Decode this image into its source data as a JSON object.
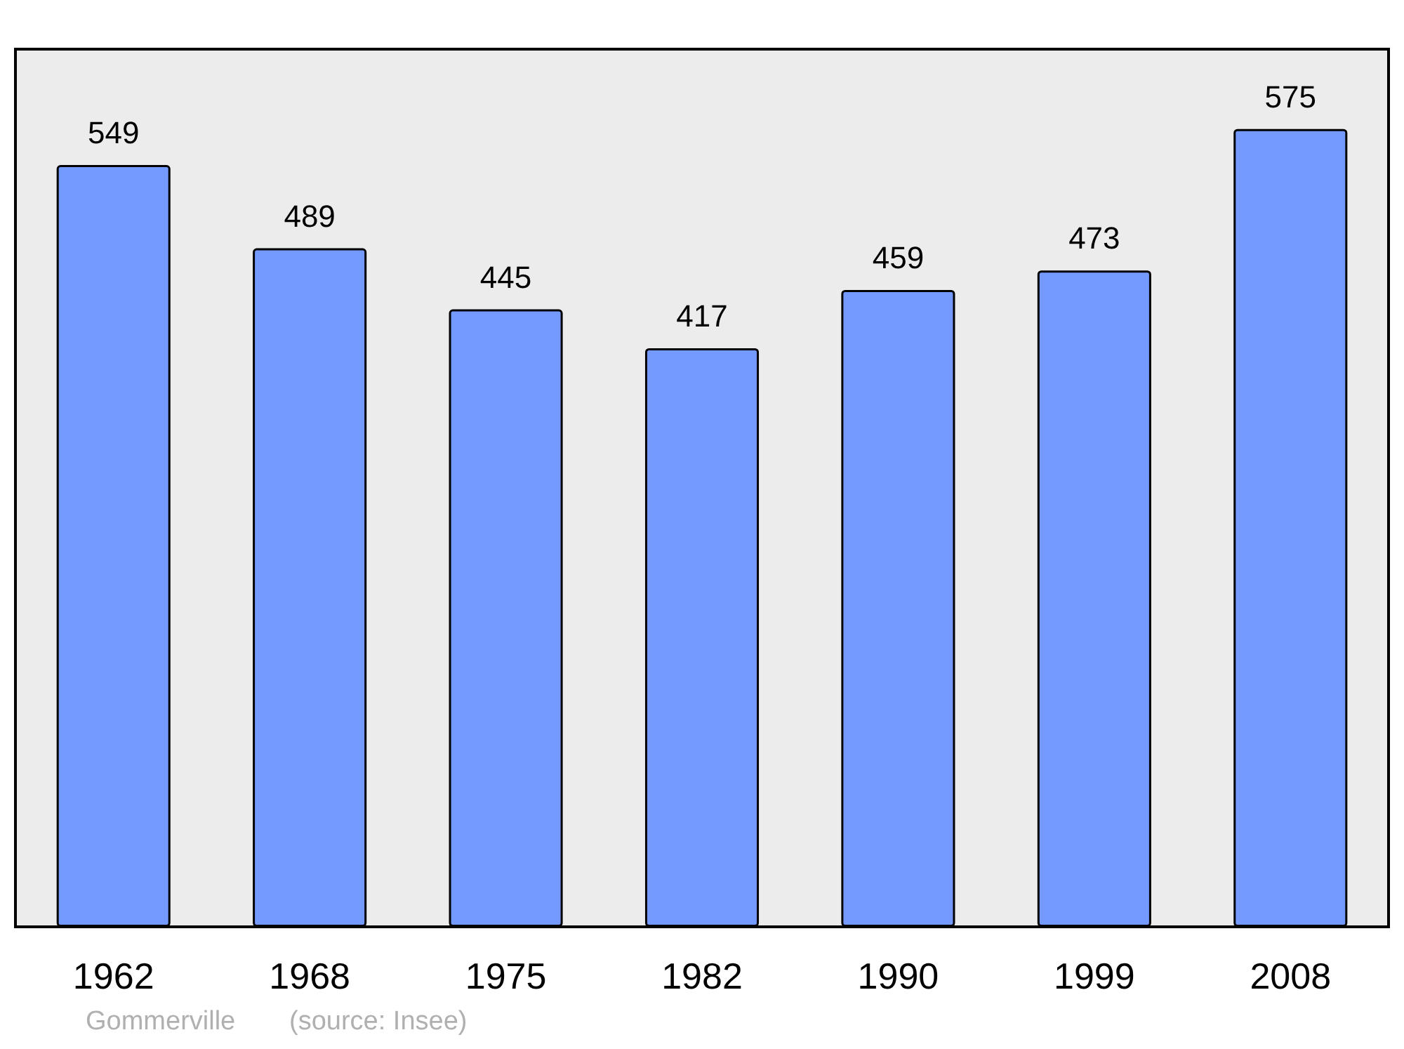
{
  "chart_data": {
    "type": "bar",
    "categories": [
      "1962",
      "1968",
      "1975",
      "1982",
      "1990",
      "1999",
      "2008"
    ],
    "values": [
      549,
      489,
      445,
      417,
      459,
      473,
      575
    ],
    "color": "#7499ff",
    "data_labels": true,
    "annotations": [
      "Gommerville",
      "(source: Insee)"
    ]
  }
}
